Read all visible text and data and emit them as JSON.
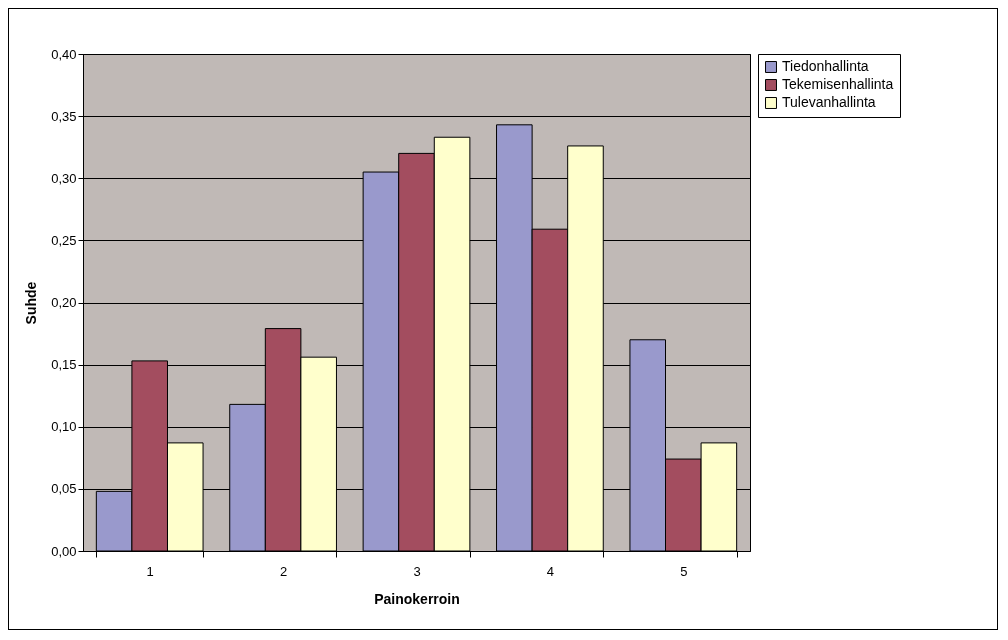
{
  "chart_data": {
    "type": "bar",
    "xlabel": "Painokerroin",
    "ylabel": "Suhde",
    "categories": [
      "1",
      "2",
      "3",
      "4",
      "5"
    ],
    "series": [
      {
        "name": "Tiedonhallinta",
        "color": "#9999cc",
        "values": [
          0.048,
          0.118,
          0.305,
          0.343,
          0.17
        ]
      },
      {
        "name": "Tekemisenhallinta",
        "color": "#a34d5f",
        "values": [
          0.153,
          0.179,
          0.32,
          0.259,
          0.074
        ]
      },
      {
        "name": "Tulevanhallinta",
        "color": "#ffffcc",
        "values": [
          0.087,
          0.156,
          0.333,
          0.326,
          0.087
        ]
      }
    ],
    "ylim": [
      0,
      0.4
    ],
    "yticks": [
      {
        "value": 0,
        "label": "0,00"
      },
      {
        "value": 0.05,
        "label": "0,05"
      },
      {
        "value": 0.1,
        "label": "0,10"
      },
      {
        "value": 0.15,
        "label": "0,15"
      },
      {
        "value": 0.2,
        "label": "0,20"
      },
      {
        "value": 0.25,
        "label": "0,25"
      },
      {
        "value": 0.3,
        "label": "0,30"
      },
      {
        "value": 0.35,
        "label": "0,35"
      },
      {
        "value": 0.4,
        "label": "0,40"
      }
    ],
    "grid": "y",
    "legend": "right"
  }
}
